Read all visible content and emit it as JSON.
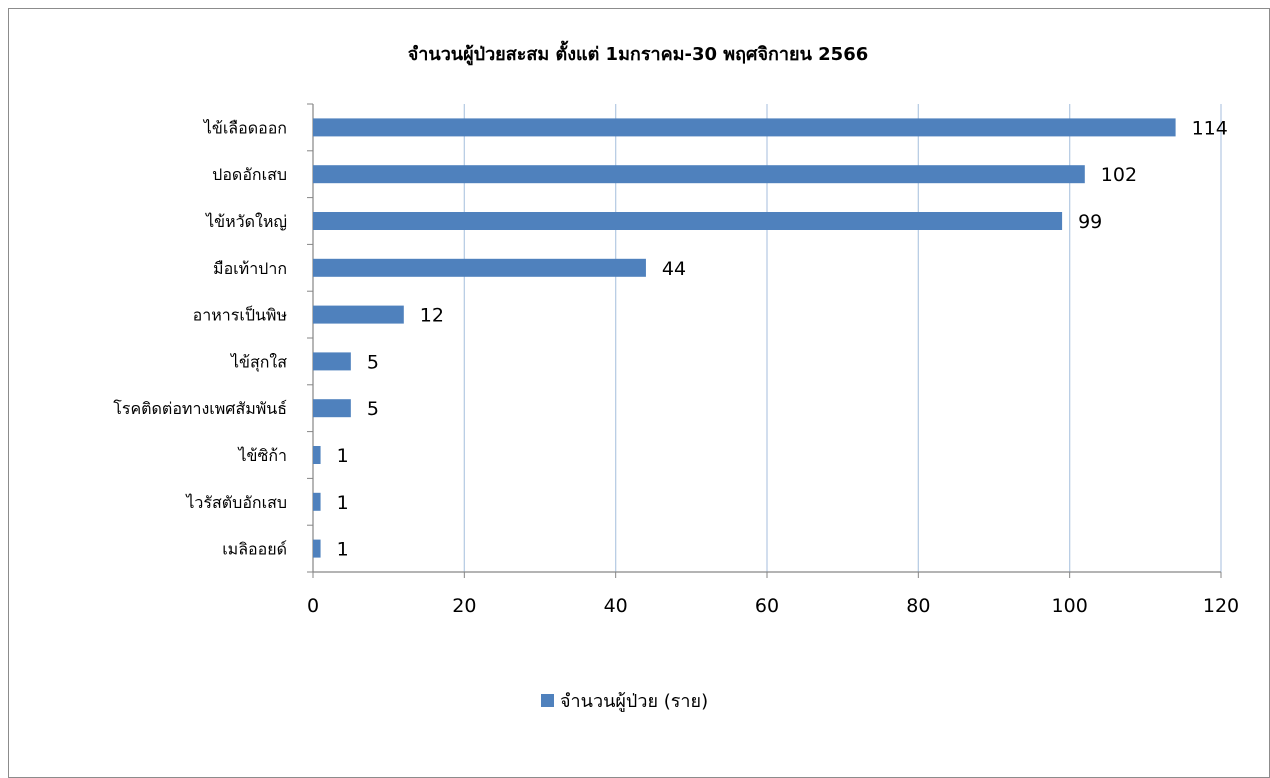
{
  "chart_data": {
    "type": "bar",
    "orientation": "horizontal",
    "title": "จำนวนผู้ป่วยสะสม ตั้งแต่ 1มกราคม-30 พฤศจิกายน 2566",
    "categories": [
      "ไข้เลือดออก",
      "ปอดอักเสบ",
      "ไข้หวัดใหญ่",
      "มือเท้าปาก",
      "อาหารเป็นพิษ",
      "ไข้สุกใส",
      "โรคติดต่อทางเพศสัมพันธ์",
      "ไข้ซิก้า",
      "ไวรัสตับอักเสบ",
      "เมลิออยด์"
    ],
    "series": [
      {
        "name": "จำนวนผู้ป่วย (ราย)",
        "values": [
          114,
          102,
          99,
          44,
          12,
          5,
          5,
          1,
          1,
          1
        ],
        "color": "#4f81bd"
      }
    ],
    "xlim": [
      0,
      120
    ],
    "xticks": [
      0,
      20,
      40,
      60,
      80,
      100,
      120
    ],
    "xlabel": "",
    "ylabel": "",
    "grid": "vertical",
    "grid_color": "#b9cde5",
    "legend": "bottom-center"
  }
}
